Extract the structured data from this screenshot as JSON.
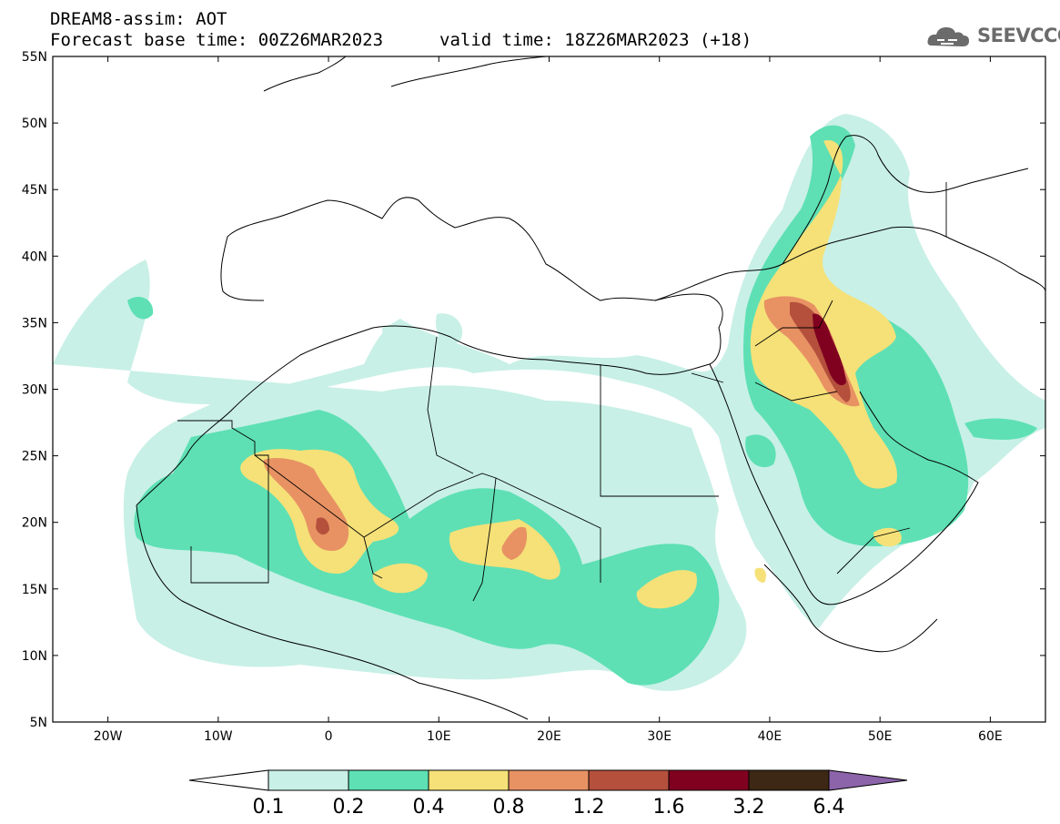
{
  "header": {
    "line1": "DREAM8-assim: AOT",
    "line2": "Forecast base time: 00Z26MAR2023",
    "line3": "valid time: 18Z26MAR2023 (+18)"
  },
  "logo": {
    "text": "SEEVCCC",
    "icon": "cloud-logo-icon"
  },
  "map": {
    "lon_range": [
      -25,
      65
    ],
    "lat_range": [
      5,
      55
    ],
    "lat_ticks": [
      "5N",
      "10N",
      "15N",
      "20N",
      "25N",
      "30N",
      "35N",
      "40N",
      "45N",
      "50N",
      "55N"
    ],
    "lon_ticks": [
      "20W",
      "10W",
      "0",
      "10E",
      "20E",
      "30E",
      "40E",
      "50E",
      "60E"
    ]
  },
  "colorbar": {
    "labels": [
      "0.1",
      "0.2",
      "0.4",
      "0.8",
      "1.2",
      "1.6",
      "3.2",
      "6.4"
    ],
    "colors": [
      "#c8f0e6",
      "#5ee0b4",
      "#f5e178",
      "#e89264",
      "#b4503c",
      "#800020",
      "#3c2814"
    ],
    "under_color": "#ffffff",
    "over_color": "#8c64aa"
  }
}
